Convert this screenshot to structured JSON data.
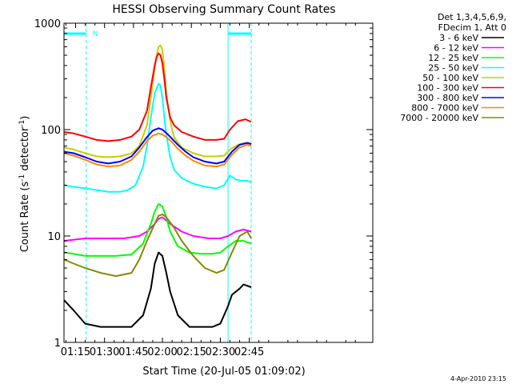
{
  "chart_data": {
    "type": "line",
    "title": "HESSI Observing Summary Count Rates",
    "xlabel": "Start Time (20-Jul-05 01:09:02)",
    "ylabel": "Count Rate (s",
    "ylabel_sup": "-1",
    "ylabel_mid": " detector",
    "ylabel_close": ")",
    "y_scale": "log",
    "ylim": [
      1,
      1000
    ],
    "xlim_minutes": [
      9,
      169
    ],
    "x_ticks": [
      {
        "m": 15,
        "label": "01:15"
      },
      {
        "m": 30,
        "label": "01:30"
      },
      {
        "m": 45,
        "label": "01:45"
      },
      {
        "m": 60,
        "label": "02:00"
      },
      {
        "m": 75,
        "label": "02:15"
      },
      {
        "m": 90,
        "label": "02:30"
      },
      {
        "m": 105,
        "label": "02:45"
      }
    ],
    "y_ticks": [
      {
        "v": 1,
        "label": "1"
      },
      {
        "v": 10,
        "label": "10"
      },
      {
        "v": 100,
        "label": "100"
      },
      {
        "v": 1000,
        "label": "1000"
      }
    ],
    "legend_header": [
      "Det 1,3,4,5,6,9,",
      "FDecim 1, Att 0"
    ],
    "legend_position": "outside-right",
    "night_marker": "N",
    "night_intervals_minutes": [
      [
        9,
        20.5
      ],
      [
        94,
        106
      ]
    ],
    "marker_color": "#00ffff",
    "footer_timestamp": "4-Apr-2010 23:15",
    "series": [
      {
        "name": "3 - 6 keV",
        "color": "#000000",
        "x": [
          9,
          14,
          20,
          28,
          36,
          44,
          50,
          54,
          56,
          58,
          60,
          62,
          64,
          68,
          74,
          80,
          86,
          90,
          94,
          96,
          100,
          102,
          106
        ],
        "y": [
          2.5,
          2,
          1.5,
          1.4,
          1.4,
          1.4,
          1.8,
          3.2,
          5.5,
          7,
          6.5,
          4.5,
          3,
          1.8,
          1.4,
          1.4,
          1.4,
          1.5,
          2.2,
          2.8,
          3.2,
          3.5,
          3.3
        ]
      },
      {
        "name": "6 - 12 keV",
        "color": "#ff00ff",
        "x": [
          9,
          20,
          30,
          40,
          48,
          52,
          56,
          58,
          60,
          62,
          64,
          70,
          76,
          84,
          90,
          94,
          98,
          102,
          106
        ],
        "y": [
          9,
          9.5,
          9.5,
          9.5,
          10,
          11,
          13,
          14.5,
          15,
          14,
          13,
          11,
          10,
          9.5,
          9.5,
          10,
          11,
          11.5,
          11
        ]
      },
      {
        "name": "12 - 25 keV",
        "color": "#00ff00",
        "x": [
          9,
          14,
          20,
          28,
          36,
          44,
          50,
          54,
          56,
          58,
          60,
          62,
          64,
          68,
          74,
          80,
          86,
          90,
          94,
          98,
          102,
          106
        ],
        "y": [
          7,
          6.8,
          6.5,
          6.5,
          6.5,
          6.7,
          8.5,
          13,
          17,
          20,
          19,
          15,
          11,
          8,
          7,
          6.8,
          6.8,
          7,
          8,
          9,
          9,
          8.5
        ]
      },
      {
        "name": "25 - 50 keV",
        "color": "#00ffff",
        "x": [
          9,
          14,
          20,
          26,
          32,
          38,
          42,
          46,
          50,
          52,
          54,
          56,
          58,
          59,
          60,
          61,
          62,
          64,
          66,
          70,
          76,
          82,
          88,
          92,
          95,
          98,
          101,
          104,
          106
        ],
        "y": [
          30,
          29,
          28,
          27,
          26,
          26,
          27,
          30,
          45,
          70,
          130,
          220,
          270,
          260,
          200,
          130,
          90,
          55,
          42,
          35,
          31,
          29,
          28,
          30,
          37,
          34,
          33,
          33,
          32
        ]
      },
      {
        "name": "50 - 100 keV",
        "color": "#cccc00",
        "x": [
          9,
          14,
          20,
          26,
          32,
          38,
          44,
          48,
          52,
          54,
          56,
          57,
          58,
          59,
          60,
          61,
          62,
          64,
          66,
          70,
          76,
          82,
          88,
          92,
          95,
          99,
          103,
          106
        ],
        "y": [
          68,
          65,
          60,
          56,
          55,
          56,
          60,
          70,
          110,
          200,
          380,
          500,
          600,
          620,
          560,
          380,
          220,
          120,
          85,
          68,
          60,
          56,
          56,
          57,
          65,
          72,
          75,
          74
        ]
      },
      {
        "name": "100 - 300 keV",
        "color": "#ff0000",
        "x": [
          9,
          14,
          20,
          26,
          32,
          38,
          44,
          48,
          52,
          54,
          56,
          57,
          58,
          59,
          60,
          61,
          62,
          64,
          66,
          70,
          76,
          82,
          88,
          92,
          95,
          99,
          103,
          106
        ],
        "y": [
          95,
          92,
          86,
          80,
          78,
          80,
          86,
          100,
          150,
          250,
          400,
          480,
          520,
          500,
          420,
          300,
          200,
          130,
          110,
          95,
          86,
          80,
          80,
          82,
          100,
          120,
          125,
          118
        ]
      },
      {
        "name": "300 - 800 keV",
        "color": "#0000ff",
        "x": [
          9,
          14,
          20,
          26,
          32,
          38,
          44,
          48,
          52,
          55,
          58,
          60,
          62,
          65,
          68,
          72,
          76,
          82,
          88,
          92,
          96,
          100,
          104,
          106
        ],
        "y": [
          62,
          60,
          55,
          50,
          48,
          50,
          56,
          68,
          85,
          98,
          103,
          100,
          93,
          82,
          72,
          62,
          55,
          50,
          48,
          50,
          62,
          72,
          75,
          73
        ]
      },
      {
        "name": "800 - 7000 keV",
        "color": "#ff8800",
        "x": [
          9,
          14,
          20,
          26,
          32,
          38,
          44,
          48,
          52,
          55,
          58,
          60,
          62,
          65,
          68,
          72,
          76,
          82,
          88,
          92,
          96,
          100,
          104,
          106
        ],
        "y": [
          60,
          57,
          52,
          47,
          45,
          46,
          52,
          62,
          78,
          88,
          92,
          90,
          85,
          76,
          66,
          57,
          51,
          46,
          45,
          47,
          58,
          68,
          72,
          70
        ]
      },
      {
        "name": "7000 - 20000 keV",
        "color": "#888800",
        "x": [
          9,
          14,
          20,
          28,
          36,
          44,
          48,
          52,
          56,
          58,
          60,
          62,
          66,
          70,
          76,
          82,
          88,
          92,
          96,
          100,
          104,
          106
        ],
        "y": [
          6,
          5.5,
          5,
          4.5,
          4.2,
          4.5,
          6,
          9,
          13,
          15.5,
          16,
          15,
          12,
          9,
          6.5,
          5,
          4.5,
          4.8,
          7,
          10,
          11,
          9.5
        ]
      }
    ]
  }
}
